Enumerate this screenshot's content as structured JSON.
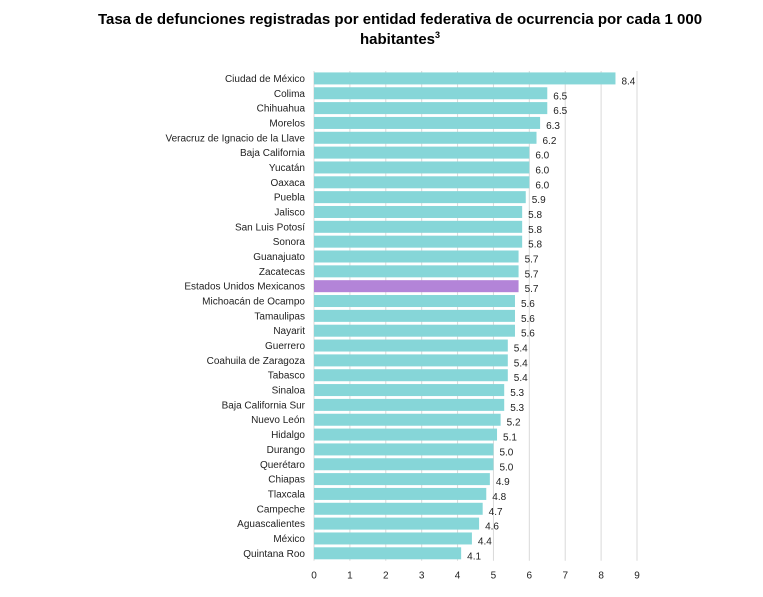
{
  "chart_data": {
    "type": "bar",
    "orientation": "horizontal",
    "title": "Tasa de defunciones registradas por entidad federativa de ocurrencia por cada 1 000",
    "title_line2": "habitantes",
    "title_superscript": "3",
    "xlabel": "",
    "ylabel": "",
    "xlim": [
      0,
      9
    ],
    "xticks": [
      "0",
      "1",
      "2",
      "3",
      "4",
      "5",
      "6",
      "7",
      "8",
      "9"
    ],
    "grid": true,
    "colors": {
      "default": "#86d6d8",
      "highlight": "#b384d8"
    },
    "highlight": "Estados Unidos Mexicanos",
    "categories": [
      "Ciudad de México",
      "Colima",
      "Chihuahua",
      "Morelos",
      "Veracruz de Ignacio de la Llave",
      "Baja California",
      "Yucatán",
      "Oaxaca",
      "Puebla",
      "Jalisco",
      "San Luis Potosí",
      "Sonora",
      "Guanajuato",
      "Zacatecas",
      "Estados Unidos Mexicanos",
      "Michoacán de Ocampo",
      "Tamaulipas",
      "Nayarit",
      "Guerrero",
      "Coahuila de Zaragoza",
      "Tabasco",
      "Sinaloa",
      "Baja California Sur",
      "Nuevo León",
      "Hidalgo",
      "Durango",
      "Querétaro",
      "Chiapas",
      "Tlaxcala",
      "Campeche",
      "Aguascalientes",
      "México",
      "Quintana Roo"
    ],
    "values": [
      8.4,
      6.5,
      6.5,
      6.3,
      6.2,
      6.0,
      6.0,
      6.0,
      5.9,
      5.8,
      5.8,
      5.8,
      5.7,
      5.7,
      5.7,
      5.6,
      5.6,
      5.6,
      5.4,
      5.4,
      5.4,
      5.3,
      5.3,
      5.2,
      5.1,
      5.0,
      5.0,
      4.9,
      4.8,
      4.7,
      4.6,
      4.4,
      4.1
    ],
    "labels": [
      "8.4",
      "6.5",
      "6.5",
      "6.3",
      "6.2",
      "6.0",
      "6.0",
      "6.0",
      "5.9",
      "5.8",
      "5.8",
      "5.8",
      "5.7",
      "5.7",
      "5.7",
      "5.6",
      "5.6",
      "5.6",
      "5.4",
      "5.4",
      "5.4",
      "5.3",
      "5.3",
      "5.2",
      "5.1",
      "5.0",
      "5.0",
      "4.9",
      "4.8",
      "4.7",
      "4.6",
      "4.4",
      "4.1"
    ]
  }
}
